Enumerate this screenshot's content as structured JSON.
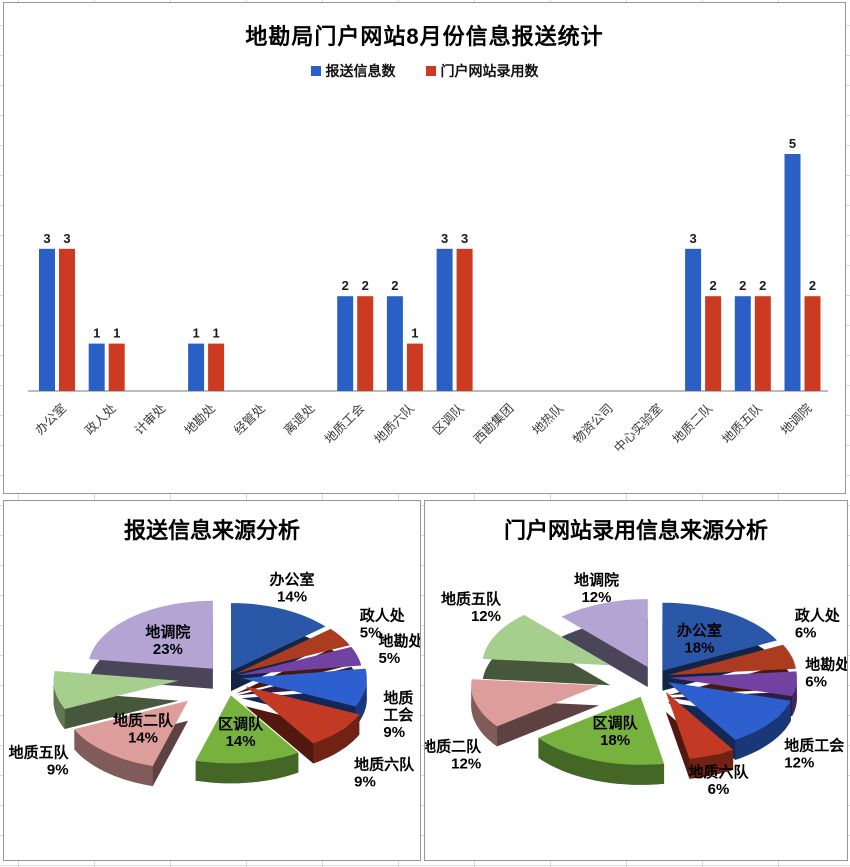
{
  "chart_data": [
    {
      "id": "bar_report_stats",
      "type": "bar",
      "title": "地勘局门户网站8月份信息报送统计",
      "legend_position": "top",
      "grid": false,
      "value_labels_shown": true,
      "ylim": [
        0,
        5
      ],
      "categories": [
        "办公室",
        "政人处",
        "计审处",
        "地勘处",
        "经管处",
        "离退处",
        "地质工会",
        "地质六队",
        "区调队",
        "西勘集团",
        "地热队",
        "物资公司",
        "中心实验室",
        "地质二队",
        "地质五队",
        "地调院"
      ],
      "series": [
        {
          "name": "报送信息数",
          "color": "#2A60C6",
          "values": [
            3,
            1,
            0,
            1,
            0,
            0,
            2,
            2,
            3,
            0,
            0,
            0,
            0,
            3,
            2,
            5
          ]
        },
        {
          "name": "门户网站录用数",
          "color": "#CC3B21",
          "values": [
            3,
            1,
            0,
            1,
            0,
            0,
            2,
            1,
            3,
            0,
            0,
            0,
            0,
            2,
            2,
            2
          ]
        }
      ],
      "axis_color": "#a6a6a6"
    },
    {
      "id": "pie_submitted_sources",
      "type": "pie",
      "title": "报送信息来源分析",
      "style": "3d-exploded",
      "legend_position": "none",
      "slices": [
        {
          "name": "办公室",
          "value": 3,
          "pct": "14%",
          "color": "#2B57A8",
          "explode": 12,
          "label_inside": false,
          "label_lines": [
            "办公室",
            "14%"
          ],
          "label_offset": [
            0,
            0
          ]
        },
        {
          "name": "政人处",
          "value": 1,
          "pct": "5%",
          "color": "#AC3C1F",
          "explode": 12,
          "label_inside": false,
          "label_lines": [
            "政人处",
            "5%"
          ],
          "label_offset": [
            0,
            0
          ]
        },
        {
          "name": "地勘处",
          "value": 1,
          "pct": "5%",
          "color": "#7142A2",
          "explode": 12,
          "label_inside": false,
          "label_lines": [
            "地勘处",
            "5%"
          ],
          "label_offset": [
            0,
            0
          ]
        },
        {
          "name": "地质工会",
          "value": 2,
          "pct": "9%",
          "color": "#2D60CE",
          "explode": 16,
          "label_inside": false,
          "label_lines": [
            "地质",
            "工会",
            "9%"
          ],
          "label_offset": [
            0,
            6
          ]
        },
        {
          "name": "地质六队",
          "value": 2,
          "pct": "9%",
          "color": "#C23A23",
          "explode": 26,
          "label_inside": false,
          "label_lines": [
            "地质六队",
            "9%"
          ],
          "label_offset": [
            8,
            14
          ]
        },
        {
          "name": "区调队",
          "value": 3,
          "pct": "14%",
          "color": "#77B23F",
          "explode": 34,
          "label_inside": true,
          "label_lines": [
            "区调队",
            "14%"
          ],
          "label_offset": [
            0,
            0
          ]
        },
        {
          "name": "地质二队",
          "value": 3,
          "pct": "14%",
          "color": "#DD9D9B",
          "explode": 58,
          "label_inside": true,
          "label_lines": [
            "地质二队",
            "14%"
          ],
          "label_offset": [
            0,
            0
          ]
        },
        {
          "name": "地质五队",
          "value": 2,
          "pct": "9%",
          "color": "#A6CE8D",
          "explode": 48,
          "label_inside": false,
          "label_lines": [
            "地质五队",
            "9%"
          ],
          "label_offset": [
            0,
            52
          ]
        },
        {
          "name": "地调院",
          "value": 5,
          "pct": "23%",
          "color": "#B3A4D4",
          "explode": 20,
          "label_inside": true,
          "label_lines": [
            "地调院",
            "23%"
          ],
          "label_offset": [
            0,
            0
          ]
        }
      ]
    },
    {
      "id": "pie_adopted_sources",
      "type": "pie",
      "title": "门户网站录用信息来源分析",
      "style": "3d-exploded",
      "legend_position": "none",
      "slices": [
        {
          "name": "办公室",
          "value": 3,
          "pct": "18%",
          "color": "#2B57A8",
          "explode": 14,
          "label_inside": true,
          "label_lines": [
            "办公室",
            "18%"
          ],
          "label_offset": [
            0,
            0
          ]
        },
        {
          "name": "政人处",
          "value": 1,
          "pct": "6%",
          "color": "#AC3C1F",
          "explode": 14,
          "label_inside": false,
          "label_lines": [
            "政人处",
            "6%"
          ],
          "label_offset": [
            -16,
            -26
          ]
        },
        {
          "name": "地勘处",
          "value": 1,
          "pct": "6%",
          "color": "#7142A2",
          "explode": 14,
          "label_inside": false,
          "label_lines": [
            "地勘处",
            "6%"
          ],
          "label_offset": [
            -11,
            -31
          ]
        },
        {
          "name": "地质工会",
          "value": 2,
          "pct": "12%",
          "color": "#2D60CE",
          "explode": 16,
          "label_inside": false,
          "label_lines": [
            "地质工会",
            "12%"
          ],
          "label_offset": [
            0,
            0
          ]
        },
        {
          "name": "地质六队",
          "value": 1,
          "pct": "6%",
          "color": "#C23A23",
          "explode": 30,
          "label_inside": false,
          "label_lines": [
            "地质六队",
            "6%"
          ],
          "label_offset": [
            5,
            -6
          ]
        },
        {
          "name": "区调队",
          "value": 3,
          "pct": "18%",
          "color": "#77B23F",
          "explode": 40,
          "label_inside": true,
          "label_lines": [
            "区调队",
            "18%"
          ],
          "label_offset": [
            0,
            0
          ]
        },
        {
          "name": "地质二队",
          "value": 2,
          "pct": "12%",
          "color": "#DD9D9B",
          "explode": 58,
          "label_inside": false,
          "label_lines": [
            "地质二队",
            "12%"
          ],
          "label_offset": [
            -18,
            33
          ]
        },
        {
          "name": "地质五队",
          "value": 2,
          "pct": "12%",
          "color": "#A6CE8D",
          "explode": 50,
          "label_inside": false,
          "label_lines": [
            "地质五队",
            "12%"
          ],
          "label_offset": [
            -9,
            -26
          ]
        },
        {
          "name": "地调院",
          "value": 2,
          "pct": "12%",
          "color": "#B3A4D4",
          "explode": 20,
          "label_inside": false,
          "label_lines": [
            "地调院",
            "12%"
          ],
          "label_offset": [
            0,
            3
          ]
        }
      ]
    }
  ]
}
